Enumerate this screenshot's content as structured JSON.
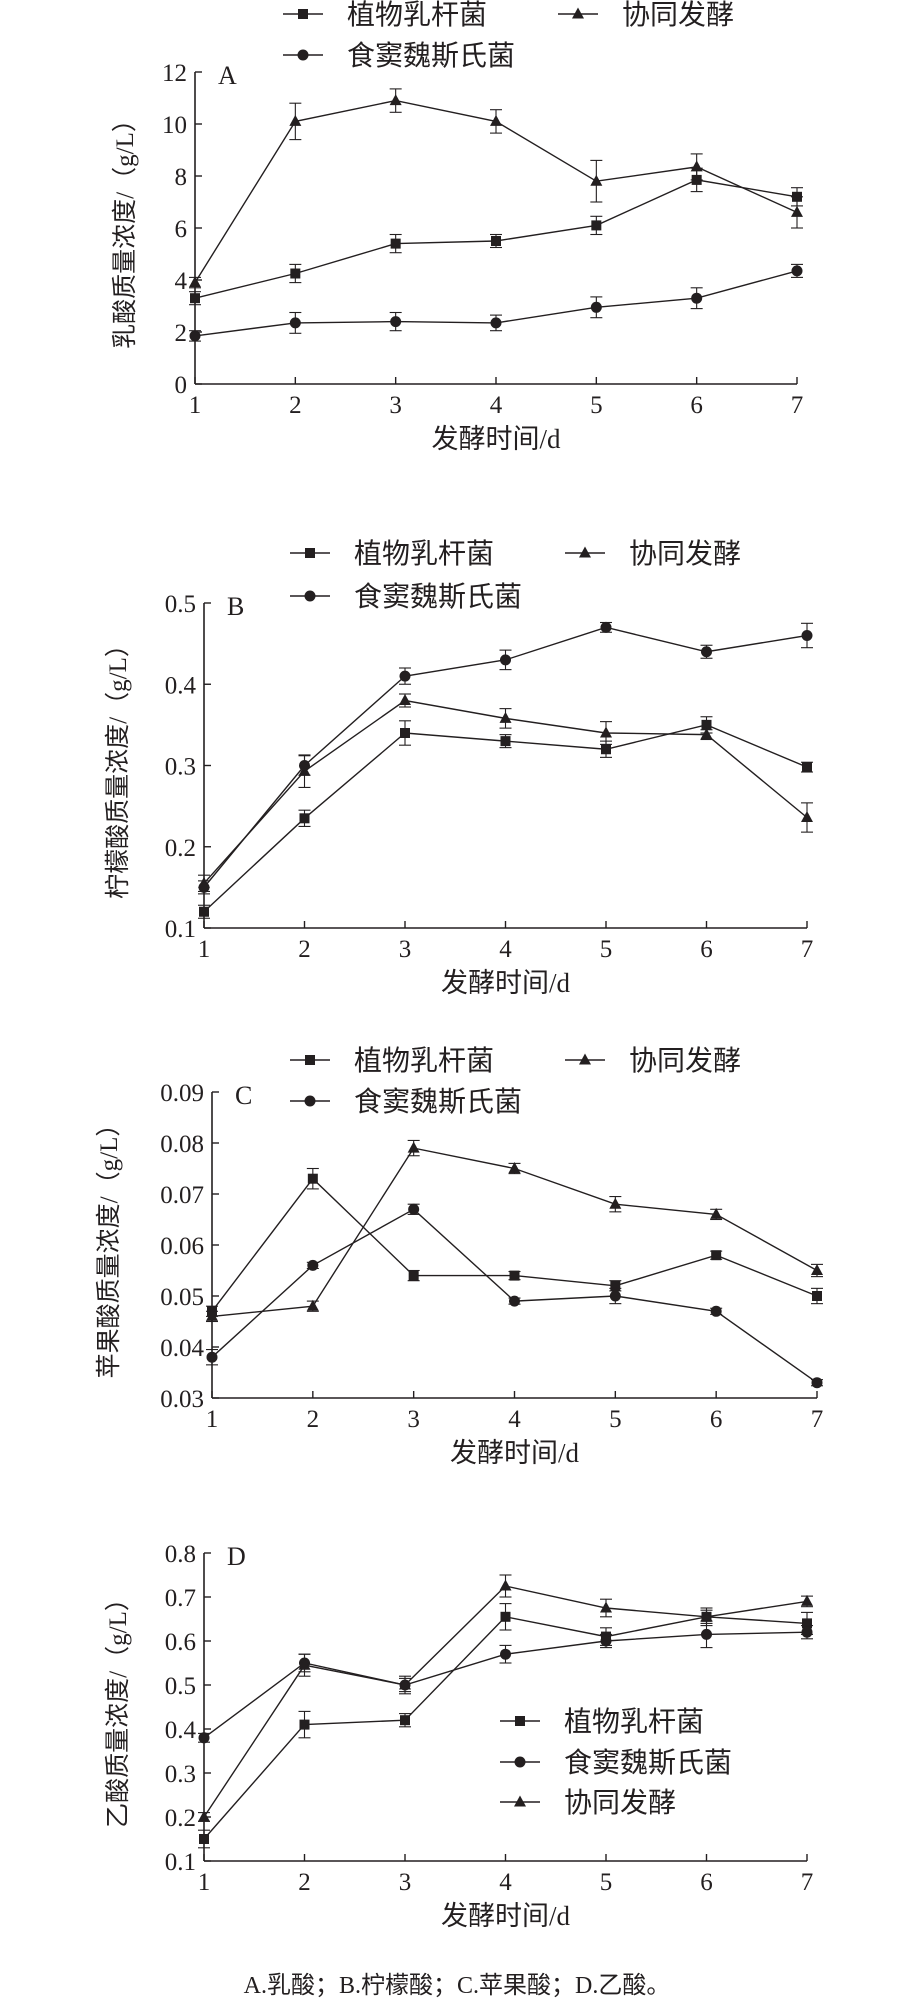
{
  "caption": "A.乳酸；B.柠檬酸；C.苹果酸；D.乙酸。",
  "chart_data": [
    {
      "type": "line",
      "panel": "A",
      "xlabel": "发酵时间/d",
      "ylabel": "乳酸质量浓度/（g/L）",
      "x": [
        1,
        2,
        3,
        4,
        5,
        6,
        7
      ],
      "xticks": [
        "1",
        "2",
        "3",
        "4",
        "5",
        "6",
        "7"
      ],
      "ylim": [
        0,
        12
      ],
      "yticks": [
        "0",
        "2",
        "4",
        "6",
        "8",
        "10",
        "12"
      ],
      "legend": "top",
      "series": [
        {
          "name": "植物乳杆菌",
          "marker": "square",
          "values": [
            3.3,
            4.25,
            5.4,
            5.5,
            6.1,
            7.85,
            7.2
          ],
          "errors": [
            0.25,
            0.35,
            0.35,
            0.25,
            0.35,
            0.45,
            0.35
          ]
        },
        {
          "name": "协同发酵",
          "marker": "triangle",
          "values": [
            3.9,
            10.1,
            10.9,
            10.1,
            7.8,
            8.35,
            6.6
          ],
          "errors": [
            0.2,
            0.7,
            0.45,
            0.45,
            0.8,
            0.5,
            0.6
          ]
        },
        {
          "name": "食窦魏斯氏菌",
          "marker": "circle",
          "values": [
            1.85,
            2.35,
            2.4,
            2.35,
            2.95,
            3.3,
            4.35
          ],
          "errors": [
            0.2,
            0.4,
            0.35,
            0.3,
            0.4,
            0.4,
            0.25
          ]
        }
      ]
    },
    {
      "type": "line",
      "panel": "B",
      "xlabel": "发酵时间/d",
      "ylabel": "柠檬酸质量浓度/（g/L）",
      "x": [
        1,
        2,
        3,
        4,
        5,
        6,
        7
      ],
      "xticks": [
        "1",
        "2",
        "3",
        "4",
        "5",
        "6",
        "7"
      ],
      "ylim": [
        0.1,
        0.5
      ],
      "yticks": [
        "0.1",
        "0.2",
        "0.3",
        "0.4",
        "0.5"
      ],
      "legend": "top",
      "series": [
        {
          "name": "植物乳杆菌",
          "marker": "square",
          "values": [
            0.12,
            0.235,
            0.34,
            0.33,
            0.32,
            0.35,
            0.298
          ],
          "errors": [
            0.008,
            0.01,
            0.015,
            0.008,
            0.01,
            0.01,
            0.006
          ]
        },
        {
          "name": "协同发酵",
          "marker": "triangle",
          "values": [
            0.155,
            0.293,
            0.38,
            0.358,
            0.34,
            0.338,
            0.236
          ],
          "errors": [
            0.01,
            0.02,
            0.008,
            0.012,
            0.014,
            0.006,
            0.018
          ]
        },
        {
          "name": "食窦魏斯氏菌",
          "marker": "circle",
          "values": [
            0.15,
            0.3,
            0.41,
            0.43,
            0.47,
            0.44,
            0.46
          ],
          "errors": [
            0.008,
            0.012,
            0.01,
            0.012,
            0.006,
            0.008,
            0.015
          ]
        }
      ]
    },
    {
      "type": "line",
      "panel": "C",
      "xlabel": "发酵时间/d",
      "ylabel": "苹果酸质量浓度/（g/L）",
      "x": [
        1,
        2,
        3,
        4,
        5,
        6,
        7
      ],
      "xticks": [
        "1",
        "2",
        "3",
        "4",
        "5",
        "6",
        "7"
      ],
      "ylim": [
        0.03,
        0.09
      ],
      "yticks": [
        "0.03",
        "0.04",
        "0.05",
        "0.06",
        "0.07",
        "0.08",
        "0.09"
      ],
      "legend": "top",
      "series": [
        {
          "name": "植物乳杆菌",
          "marker": "square",
          "values": [
            0.047,
            0.073,
            0.054,
            0.054,
            0.052,
            0.058,
            0.05
          ],
          "errors": [
            0.001,
            0.002,
            0.001,
            0.0008,
            0.001,
            0.0008,
            0.0015
          ]
        },
        {
          "name": "协同发酵",
          "marker": "triangle",
          "values": [
            0.046,
            0.048,
            0.079,
            0.075,
            0.068,
            0.066,
            0.055
          ],
          "errors": [
            0.001,
            0.001,
            0.0015,
            0.001,
            0.0015,
            0.001,
            0.0012
          ]
        },
        {
          "name": "食窦魏斯氏菌",
          "marker": "circle",
          "values": [
            0.038,
            0.056,
            0.067,
            0.049,
            0.05,
            0.047,
            0.033
          ],
          "errors": [
            0.0015,
            0.0006,
            0.001,
            0.0006,
            0.0015,
            0.0006,
            0.0006
          ]
        }
      ]
    },
    {
      "type": "line",
      "panel": "D",
      "xlabel": "发酵时间/d",
      "ylabel": "乙酸质量浓度/（g/L）",
      "x": [
        1,
        2,
        3,
        4,
        5,
        6,
        7
      ],
      "xticks": [
        "1",
        "2",
        "3",
        "4",
        "5",
        "6",
        "7"
      ],
      "ylim": [
        0.1,
        0.8
      ],
      "yticks": [
        "0.1",
        "0.2",
        "0.3",
        "0.4",
        "0.5",
        "0.6",
        "0.7",
        "0.8"
      ],
      "legend": "bottom-right",
      "series": [
        {
          "name": "植物乳杆菌",
          "marker": "square",
          "values": [
            0.15,
            0.41,
            0.42,
            0.655,
            0.61,
            0.655,
            0.64
          ],
          "errors": [
            0.02,
            0.03,
            0.015,
            0.03,
            0.02,
            0.02,
            0.025
          ]
        },
        {
          "name": "食窦魏斯氏菌",
          "marker": "circle",
          "values": [
            0.38,
            0.55,
            0.5,
            0.57,
            0.6,
            0.615,
            0.62
          ],
          "errors": [
            0.01,
            0.02,
            0.015,
            0.02,
            0.015,
            0.03,
            0.015
          ]
        },
        {
          "name": "协同发酵",
          "marker": "triangle",
          "values": [
            0.2,
            0.545,
            0.5,
            0.725,
            0.675,
            0.655,
            0.69
          ],
          "errors": [
            0.01,
            0.025,
            0.02,
            0.025,
            0.02,
            0.015,
            0.012
          ]
        }
      ]
    }
  ]
}
